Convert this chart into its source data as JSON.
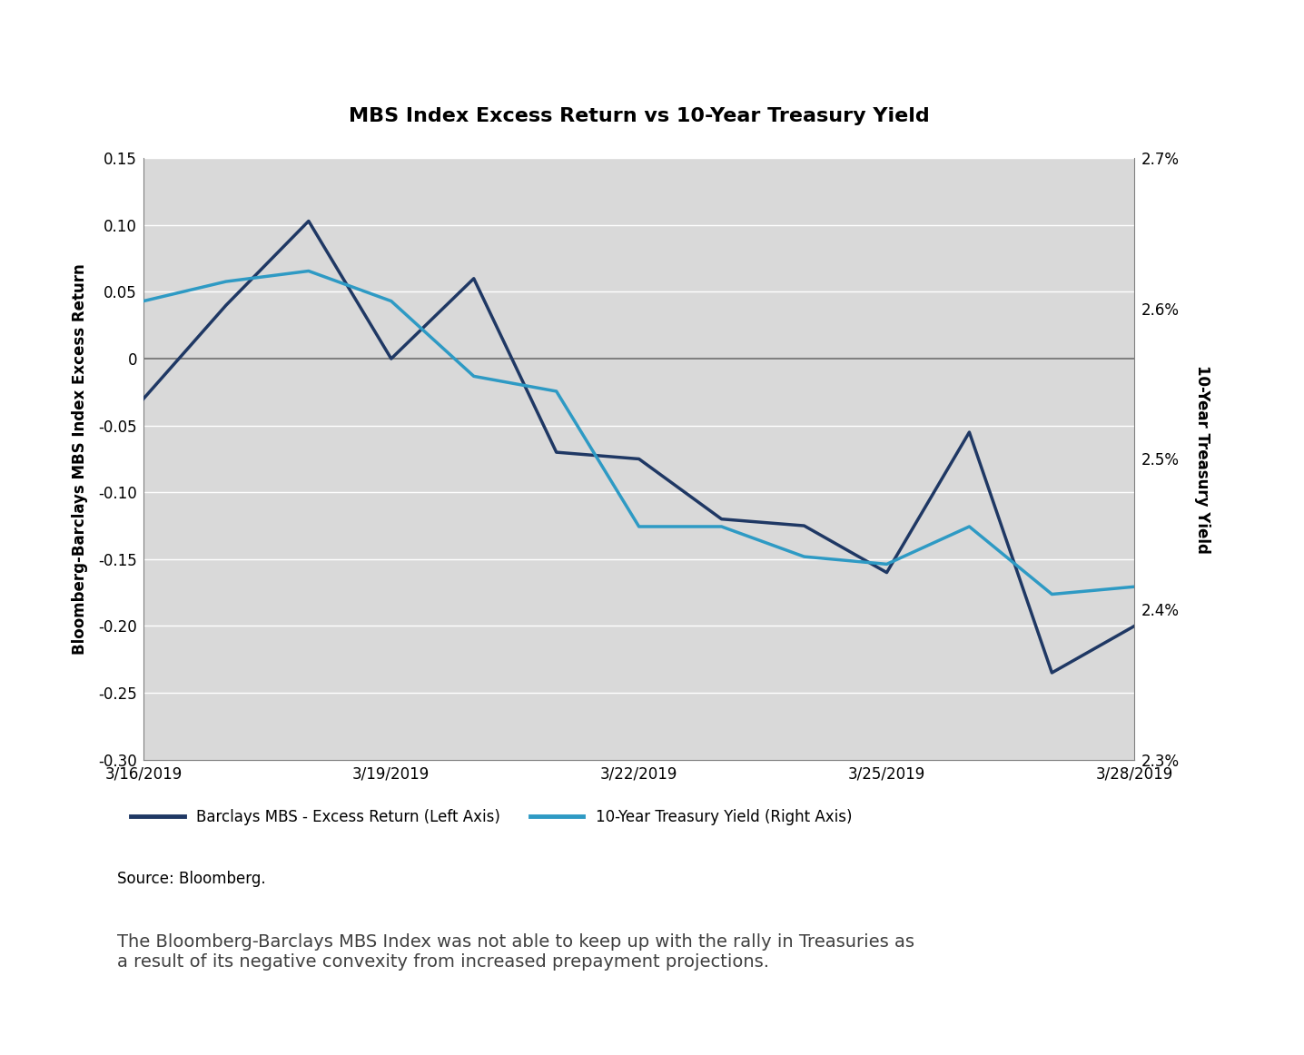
{
  "title": "MBS Index Excess Return vs 10-Year Treasury Yield",
  "x_indices": [
    0,
    1,
    2,
    3,
    4,
    5,
    6,
    7,
    8,
    9,
    10,
    11,
    12
  ],
  "date_labels": {
    "0": "3/16/2019",
    "3": "3/19/2019",
    "6": "3/22/2019",
    "9": "3/25/2019",
    "12": "3/28/2019"
  },
  "mbs_excess_return": [
    -0.03,
    0.04,
    0.103,
    0.0,
    0.06,
    -0.07,
    -0.075,
    -0.12,
    -0.125,
    -0.16,
    -0.055,
    -0.235,
    -0.2
  ],
  "treasury_yield": [
    2.605,
    2.618,
    2.625,
    2.605,
    2.555,
    2.545,
    2.455,
    2.455,
    2.435,
    2.43,
    2.455,
    2.41,
    2.415
  ],
  "left_ylim": [
    -0.3,
    0.15
  ],
  "right_ylim": [
    2.3,
    2.7
  ],
  "left_yticks": [
    -0.3,
    -0.25,
    -0.2,
    -0.15,
    -0.1,
    -0.05,
    0,
    0.05,
    0.1,
    0.15
  ],
  "right_yticks": [
    2.3,
    2.4,
    2.5,
    2.6,
    2.7
  ],
  "mbs_color": "#1f3864",
  "treasury_color": "#2e9ac4",
  "background_color": "#d9d9d9",
  "left_ylabel": "Bloomberg-Barclays MBS Index Excess Return",
  "right_ylabel": "10-Year Treasury Yield",
  "legend_mbs": "Barclays MBS - Excess Return (Left Axis)",
  "legend_treasury": "10-Year Treasury Yield (Right Axis)",
  "source_text": "Source: Bloomberg.",
  "footnote_text": "The Bloomberg-Barclays MBS Index was not able to keep up with the rally in Treasuries as\na result of its negative convexity from increased prepayment projections.",
  "line_width": 2.5,
  "zero_line_color": "#808080",
  "grid_color": "white"
}
